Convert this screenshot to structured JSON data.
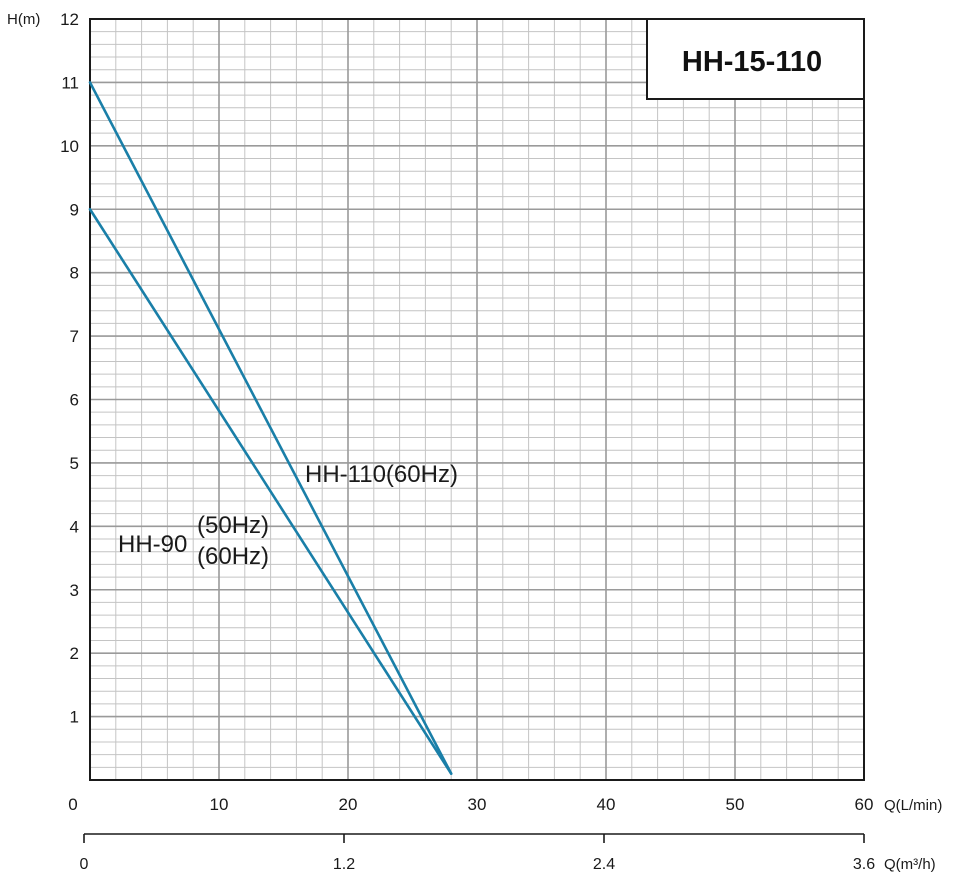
{
  "chart_data": {
    "type": "line",
    "title": "HH-15-110",
    "ylabel": "H(m)",
    "xlabel": "Q(L/min)",
    "x2label": "Q(m³/h)",
    "xlim": [
      0,
      60
    ],
    "ylim": [
      0,
      12
    ],
    "x2lim": [
      0,
      3.6
    ],
    "x_ticks": [
      "0",
      "10",
      "20",
      "30",
      "40",
      "50",
      "60"
    ],
    "y_ticks": [
      "1",
      "2",
      "3",
      "4",
      "5",
      "6",
      "7",
      "8",
      "9",
      "10",
      "11",
      "12"
    ],
    "x2_ticks": [
      "0",
      "1.2",
      "2.4",
      "3.6"
    ],
    "grid": true,
    "line_color": "#1a7fa8",
    "series": [
      {
        "name": "HH-110(60Hz)",
        "x": [
          0,
          28
        ],
        "y": [
          11,
          0.1
        ]
      },
      {
        "name": "HH-90 (50Hz)(60Hz)",
        "x": [
          0,
          28
        ],
        "y": [
          9,
          0.1
        ]
      }
    ],
    "annotations": {
      "hh110": "HH-110(60Hz)",
      "hh90": "HH-90",
      "hz50": "(50Hz)",
      "hz60": "(60Hz)"
    }
  }
}
